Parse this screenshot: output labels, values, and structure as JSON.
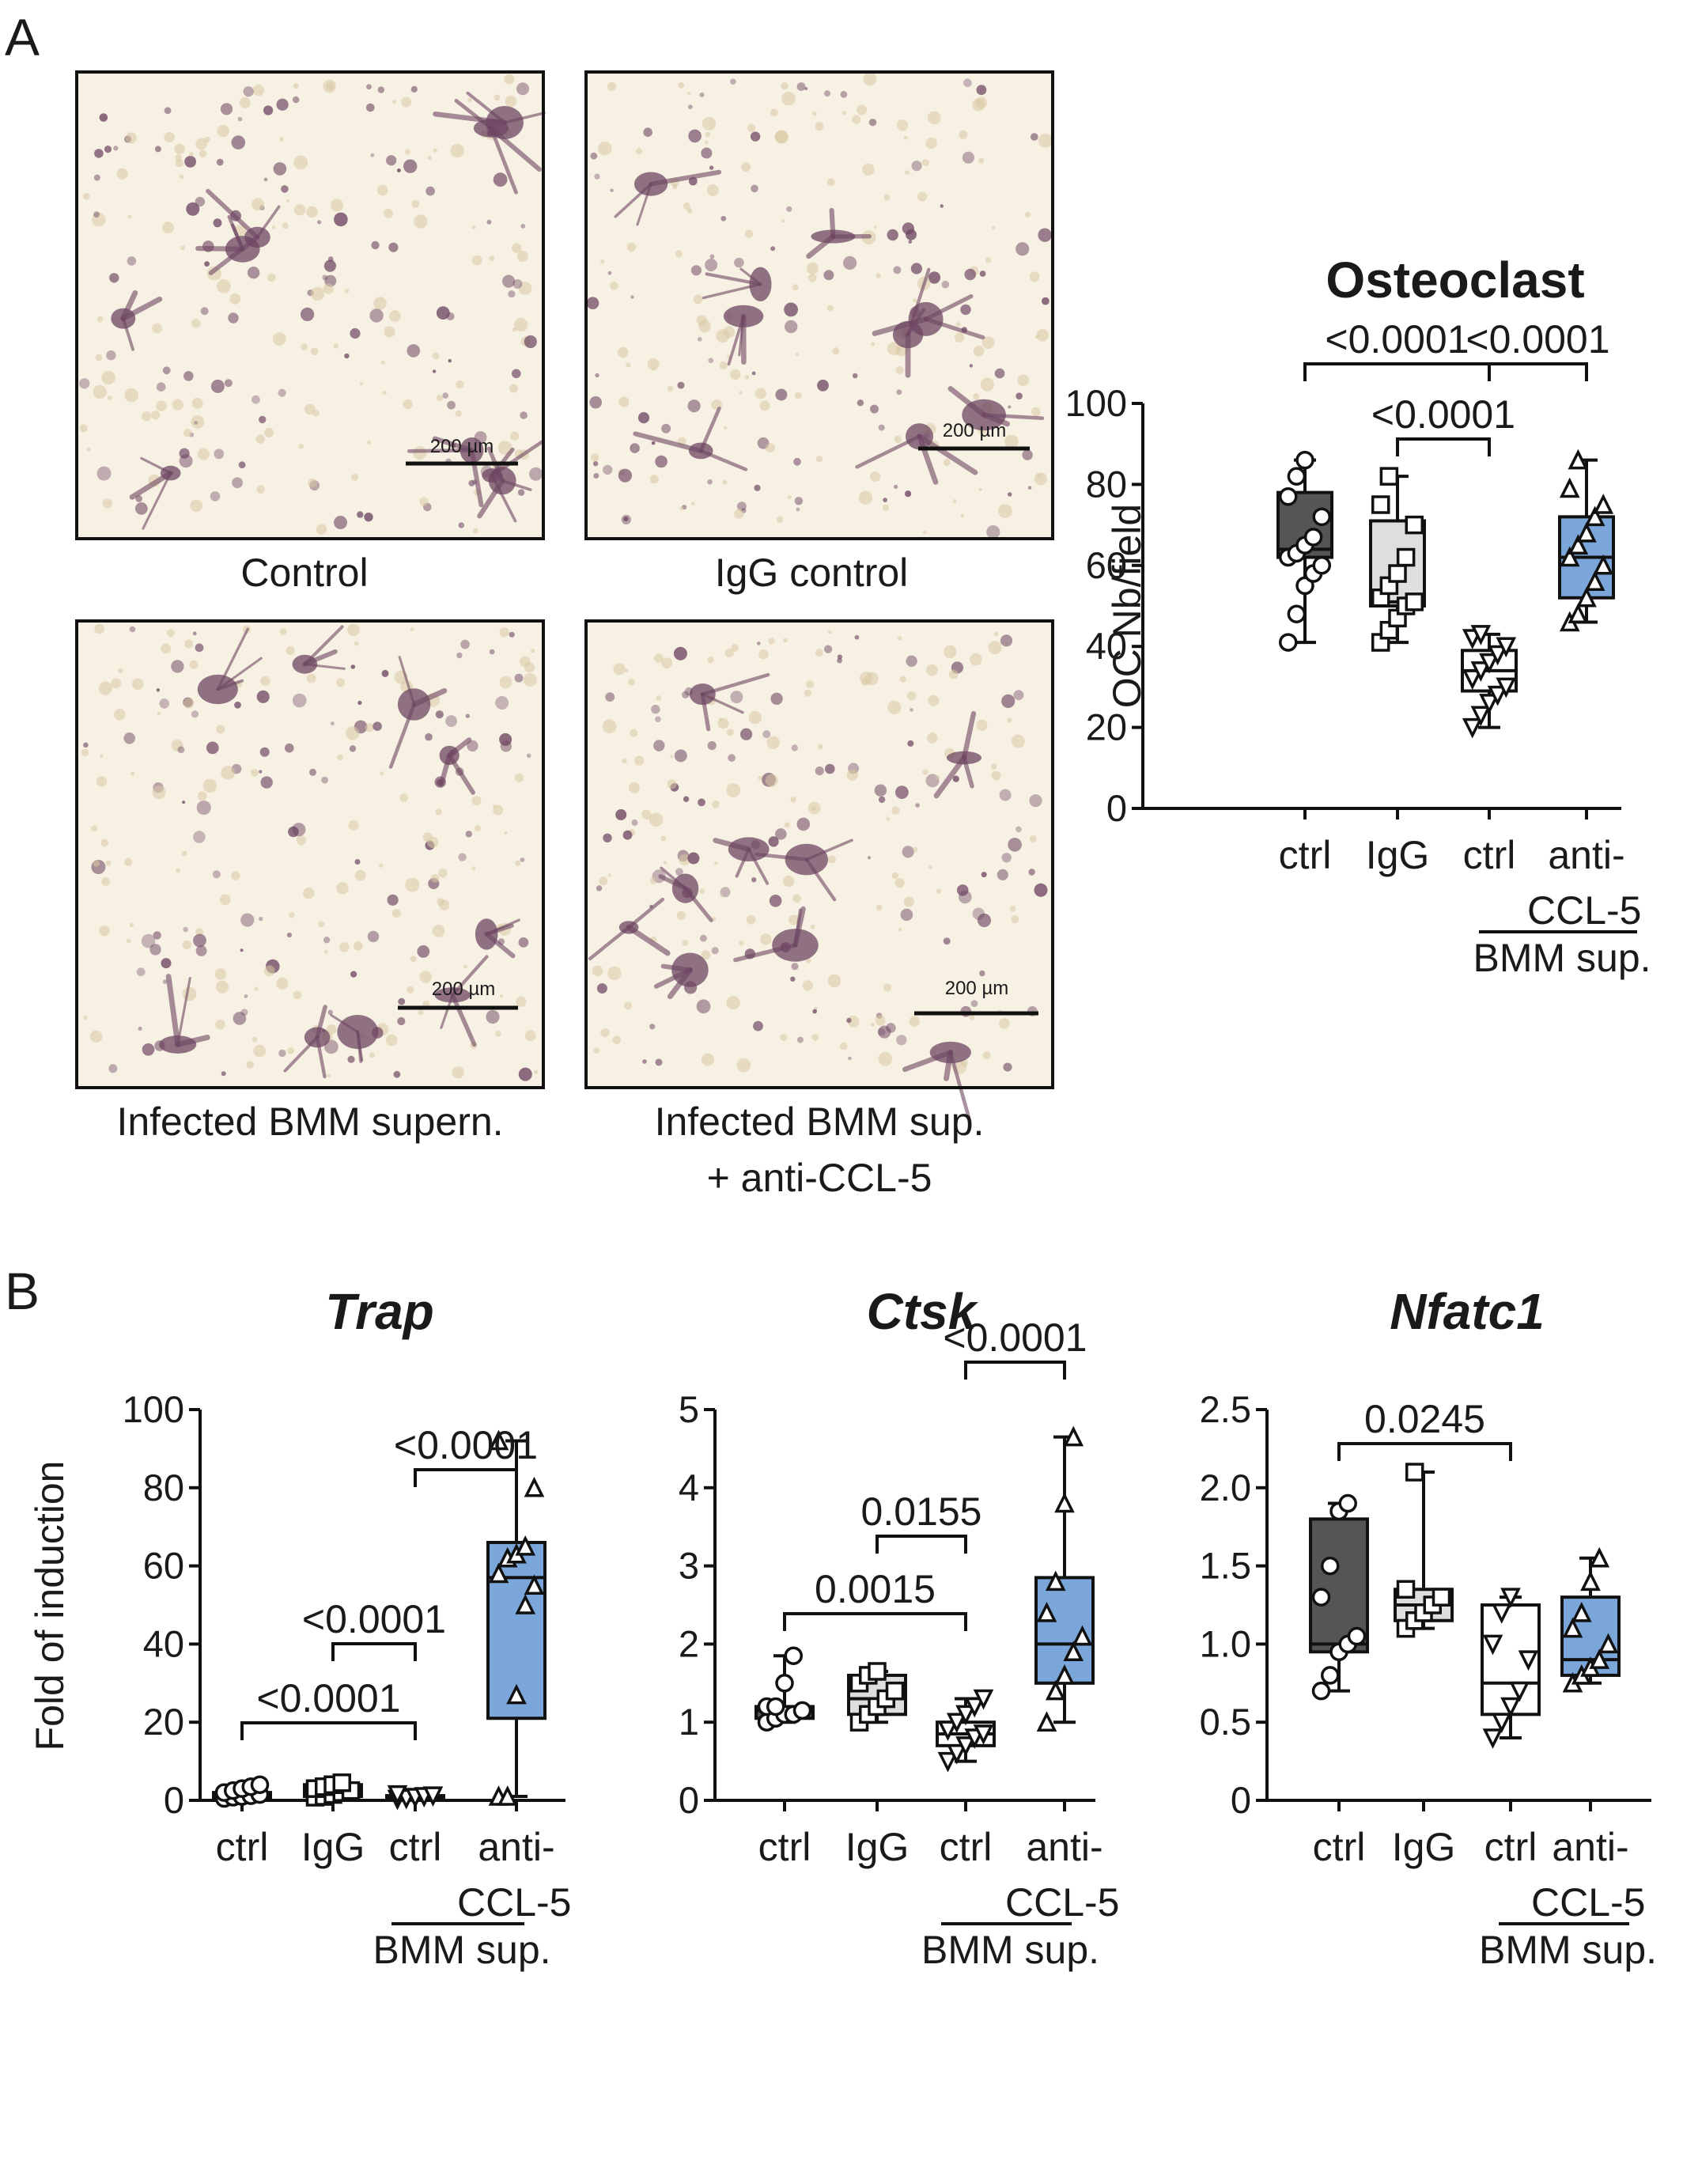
{
  "panel_a": {
    "letter": "A",
    "micrographs": [
      {
        "caption_lines": [
          "Control"
        ],
        "scale_bar_label": "200 µm"
      },
      {
        "caption_lines": [
          "IgG control"
        ],
        "scale_bar_label": "200 µm"
      },
      {
        "caption_lines": [
          "Infected BMM supern."
        ],
        "scale_bar_label": "200 µm"
      },
      {
        "caption_lines": [
          "Infected BMM sup.",
          "+ anti-CCL-5"
        ],
        "scale_bar_label": "200 µm"
      }
    ]
  },
  "panel_b": {
    "letter": "B"
  },
  "colors": {
    "ctrl_box": "#555555",
    "igg_box": "#dedede",
    "bmm_ctrl_box": "#ffffff",
    "anti_ccl5_box": "#7ba6d9",
    "micrograph_bg": "#f7f1e4",
    "cell_stain": "#6e4662"
  },
  "chart_data": [
    {
      "type": "box",
      "title": "Osteoclast",
      "title_style": "bold",
      "ylabel": "OC Nb/field",
      "ylim": [
        0,
        100
      ],
      "yticks": [
        "0",
        "20",
        "40",
        "60",
        "80",
        "100"
      ],
      "categories": [
        "ctrl",
        "IgG",
        "ctrl",
        "anti-\nCCL-5"
      ],
      "group_label": "BMM sup.",
      "series": [
        {
          "box": {
            "min": 41,
            "q1": 62,
            "median": 64,
            "q3": 78,
            "max": 86
          },
          "points": [
            41,
            48,
            55,
            58,
            60,
            62,
            63,
            65,
            67,
            72,
            77,
            82,
            86
          ],
          "marker": "circle"
        },
        {
          "box": {
            "min": 41,
            "q1": 50,
            "median": 51,
            "q3": 71,
            "max": 82
          },
          "points": [
            41,
            44,
            47,
            50,
            51,
            52,
            55,
            58,
            62,
            70,
            75,
            82
          ],
          "marker": "square"
        },
        {
          "box": {
            "min": 20,
            "q1": 29,
            "median": 34,
            "q3": 39,
            "max": 43
          },
          "points": [
            20,
            23,
            26,
            28,
            30,
            32,
            34,
            36,
            38,
            40,
            42,
            43
          ],
          "marker": "triangle-down"
        },
        {
          "box": {
            "min": 46,
            "q1": 52,
            "median": 62,
            "q3": 72,
            "max": 86
          },
          "points": [
            46,
            48,
            52,
            56,
            60,
            62,
            65,
            68,
            72,
            75,
            79,
            86
          ],
          "marker": "triangle-up"
        }
      ],
      "comparisons": [
        {
          "from": 0,
          "to": 2,
          "label": "<0.0001"
        },
        {
          "from": 2,
          "to": 3,
          "label": "<0.0001"
        },
        {
          "from": 1,
          "to": 2,
          "label": "<0.0001"
        }
      ]
    },
    {
      "type": "box",
      "title": "Trap",
      "title_style": "bold-italic",
      "ylabel": "Fold of induction",
      "ylim": [
        0,
        100
      ],
      "yticks": [
        "0",
        "20",
        "40",
        "60",
        "80",
        "100"
      ],
      "categories": [
        "ctrl",
        "IgG",
        "ctrl",
        "anti-\nCCL-5"
      ],
      "group_label": "BMM sup.",
      "series": [
        {
          "box": {
            "min": 0.5,
            "q1": 0.8,
            "median": 1.0,
            "q3": 2.0,
            "max": 4.0
          },
          "points": [
            0.5,
            0.8,
            1.0,
            1.2,
            1.5,
            2.0,
            2.5,
            3.0,
            3.5,
            4.0
          ],
          "marker": "circle"
        },
        {
          "box": {
            "min": 0.8,
            "q1": 1.0,
            "median": 2.5,
            "q3": 4.0,
            "max": 4.5
          },
          "points": [
            0.8,
            1.0,
            1.5,
            2.0,
            2.5,
            3.0,
            3.5,
            4.0,
            4.5
          ],
          "marker": "square"
        },
        {
          "box": {
            "min": 0.3,
            "q1": 0.5,
            "median": 1.0,
            "q3": 1.2,
            "max": 1.5
          },
          "points": [
            0.3,
            0.5,
            0.8,
            1.0,
            1.2,
            1.5
          ],
          "marker": "triangle-down"
        },
        {
          "box": {
            "min": 1,
            "q1": 21,
            "median": 57,
            "q3": 66,
            "max": 92
          },
          "points": [
            1,
            1,
            27,
            50,
            55,
            58,
            62,
            63,
            65,
            80,
            92
          ],
          "marker": "triangle-up"
        }
      ],
      "comparisons": [
        {
          "from": 2,
          "to": 3,
          "label": "<0.0001"
        },
        {
          "from": 1,
          "to": 2,
          "label": "<0.0001"
        },
        {
          "from": 0,
          "to": 2,
          "label": "<0.0001"
        }
      ]
    },
    {
      "type": "box",
      "title": "Ctsk",
      "title_style": "bold-italic",
      "ylabel": "",
      "ylim": [
        0,
        5
      ],
      "yticks": [
        "0",
        "1",
        "2",
        "3",
        "4",
        "5"
      ],
      "categories": [
        "ctrl",
        "IgG",
        "ctrl",
        "anti-\nCCL-5"
      ],
      "group_label": "BMM sup.",
      "series": [
        {
          "box": {
            "min": 1.0,
            "q1": 1.05,
            "median": 1.15,
            "q3": 1.2,
            "max": 1.85
          },
          "points": [
            1.0,
            1.05,
            1.1,
            1.1,
            1.15,
            1.2,
            1.2,
            1.5,
            1.85
          ],
          "marker": "circle"
        },
        {
          "box": {
            "min": 1.0,
            "q1": 1.1,
            "median": 1.3,
            "q3": 1.6,
            "max": 1.65
          },
          "points": [
            1.0,
            1.1,
            1.2,
            1.3,
            1.4,
            1.5,
            1.6,
            1.65
          ],
          "marker": "square"
        },
        {
          "box": {
            "min": 0.5,
            "q1": 0.7,
            "median": 0.85,
            "q3": 1.0,
            "max": 1.3
          },
          "points": [
            0.5,
            0.6,
            0.7,
            0.8,
            0.85,
            0.9,
            1.0,
            1.1,
            1.2,
            1.3
          ],
          "marker": "triangle-down"
        },
        {
          "box": {
            "min": 1.0,
            "q1": 1.5,
            "median": 2.0,
            "q3": 2.85,
            "max": 4.65
          },
          "points": [
            1.0,
            1.4,
            1.6,
            1.9,
            2.1,
            2.4,
            2.8,
            3.8,
            4.65
          ],
          "marker": "triangle-up"
        }
      ],
      "comparisons": [
        {
          "from": 2,
          "to": 3,
          "label": "<0.0001"
        },
        {
          "from": 1,
          "to": 2,
          "label": "0.0155"
        },
        {
          "from": 0,
          "to": 2,
          "label": "0.0015"
        }
      ]
    },
    {
      "type": "box",
      "title": "Nfatc1",
      "title_style": "bold-italic",
      "ylabel": "",
      "ylim": [
        0,
        2.5
      ],
      "yticks": [
        "0",
        "0.5",
        "1.0",
        "1.5",
        "2.0",
        "2.5"
      ],
      "categories": [
        "ctrl",
        "IgG",
        "ctrl",
        "anti-\nCCL-5"
      ],
      "group_label": "BMM sup.",
      "series": [
        {
          "box": {
            "min": 0.7,
            "q1": 0.95,
            "median": 1.0,
            "q3": 1.8,
            "max": 1.9
          },
          "points": [
            0.7,
            0.8,
            0.95,
            1.0,
            1.05,
            1.3,
            1.5,
            1.85,
            1.9
          ],
          "marker": "circle"
        },
        {
          "box": {
            "min": 1.1,
            "q1": 1.15,
            "median": 1.25,
            "q3": 1.35,
            "max": 2.1
          },
          "points": [
            1.1,
            1.15,
            1.2,
            1.25,
            1.3,
            1.35,
            2.1
          ],
          "marker": "square"
        },
        {
          "box": {
            "min": 0.4,
            "q1": 0.55,
            "median": 0.75,
            "q3": 1.25,
            "max": 1.3
          },
          "points": [
            0.4,
            0.5,
            0.6,
            0.7,
            0.9,
            1.0,
            1.2,
            1.3
          ],
          "marker": "triangle-down"
        },
        {
          "box": {
            "min": 0.75,
            "q1": 0.8,
            "median": 0.9,
            "q3": 1.3,
            "max": 1.55
          },
          "points": [
            0.75,
            0.8,
            0.85,
            0.9,
            1.0,
            1.1,
            1.2,
            1.4,
            1.55
          ],
          "marker": "triangle-up"
        }
      ],
      "comparisons": [
        {
          "from": 0,
          "to": 2,
          "label": "0.0245"
        }
      ]
    }
  ]
}
